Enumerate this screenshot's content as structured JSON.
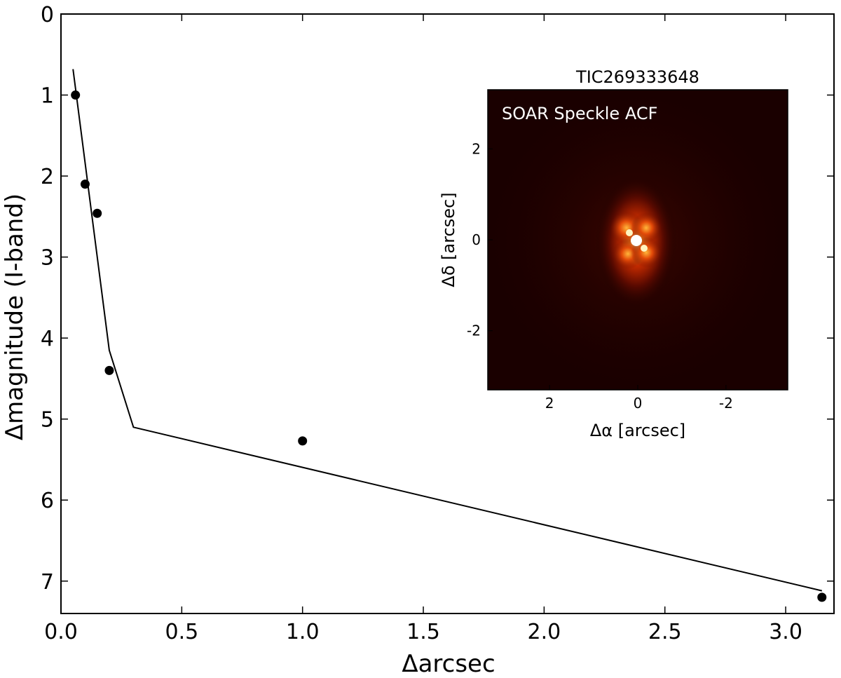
{
  "chart_data": [
    {
      "type": "line",
      "xlabel": "Δarcsec",
      "ylabel": "Δmagnitude (I-band)",
      "xlim": [
        0.0,
        3.2
      ],
      "ylim": [
        7.4,
        0.0
      ],
      "y_inverted": true,
      "xticks": [
        "0.0",
        "0.5",
        "1.0",
        "1.5",
        "2.0",
        "2.5",
        "3.0"
      ],
      "yticks": [
        "0",
        "1",
        "2",
        "3",
        "4",
        "5",
        "6",
        "7"
      ],
      "series": [
        {
          "style": "line",
          "color": "#000000",
          "x": [
            0.05,
            0.2,
            0.3,
            3.15
          ],
          "y": [
            0.68,
            4.15,
            5.1,
            7.12
          ]
        },
        {
          "style": "points",
          "color": "#000000",
          "x": [
            0.06,
            0.1,
            0.15,
            0.2,
            1.0,
            3.15
          ],
          "y": [
            1.0,
            2.1,
            2.46,
            4.4,
            5.27,
            7.2
          ]
        }
      ]
    },
    {
      "type": "heatmap",
      "title": "TIC269333648",
      "annotation": "SOAR Speckle ACF",
      "xlabel": "Δα [arcsec]",
      "ylabel": "Δδ [arcsec]",
      "xlim": [
        3.4,
        -3.4
      ],
      "ylim": [
        -3.3,
        3.3
      ],
      "xticks": [
        "2",
        "0",
        "-2"
      ],
      "yticks": [
        "2",
        "0",
        "-2"
      ],
      "colormap": "hot",
      "background_color": "#1a0000"
    }
  ]
}
